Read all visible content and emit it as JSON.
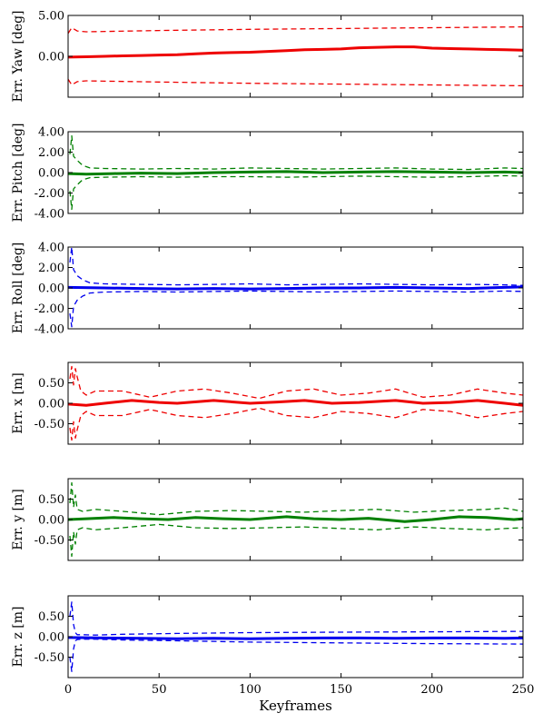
{
  "chart_data": [
    {
      "type": "line",
      "ylabel": "Err. Yaw [deg]",
      "color": "#ee0000",
      "xlim": [
        0,
        250
      ],
      "ylim": [
        -5,
        5
      ],
      "yticks": [
        5,
        0,
        -5
      ],
      "ytick_labels": [
        "5.00",
        "0.00",
        ""
      ],
      "series": [
        {
          "role": "mean",
          "x": [
            0,
            10,
            20,
            30,
            40,
            50,
            60,
            70,
            80,
            90,
            100,
            110,
            120,
            130,
            140,
            150,
            160,
            170,
            180,
            190,
            200,
            210,
            220,
            230,
            240,
            250
          ],
          "values": [
            -0.1,
            -0.05,
            0.0,
            0.05,
            0.1,
            0.15,
            0.2,
            0.3,
            0.4,
            0.45,
            0.5,
            0.6,
            0.7,
            0.8,
            0.85,
            0.9,
            1.05,
            1.1,
            1.15,
            1.15,
            1.0,
            0.95,
            0.9,
            0.85,
            0.8,
            0.75
          ]
        },
        {
          "role": "upper",
          "x": [
            0,
            2,
            5,
            10,
            50,
            100,
            150,
            200,
            250
          ],
          "values": [
            2.8,
            3.5,
            3.1,
            3.0,
            3.15,
            3.3,
            3.4,
            3.5,
            3.6
          ]
        },
        {
          "role": "lower",
          "x": [
            0,
            2,
            5,
            10,
            50,
            100,
            150,
            200,
            250
          ],
          "values": [
            -2.8,
            -3.5,
            -3.1,
            -3.0,
            -3.15,
            -3.3,
            -3.4,
            -3.5,
            -3.6
          ]
        }
      ]
    },
    {
      "type": "line",
      "ylabel": "Err. Pitch [deg]",
      "color": "#008000",
      "xlim": [
        0,
        250
      ],
      "ylim": [
        -4,
        4
      ],
      "yticks": [
        4,
        2,
        0,
        -2,
        -4
      ],
      "ytick_labels": [
        "4.00",
        "2.00",
        "0.00",
        "-2.00",
        "-4.00"
      ],
      "series": [
        {
          "role": "mean",
          "x": [
            0,
            10,
            25,
            40,
            60,
            80,
            100,
            120,
            140,
            160,
            180,
            200,
            220,
            240,
            250
          ],
          "values": [
            -0.1,
            -0.15,
            -0.1,
            -0.05,
            -0.1,
            0.0,
            0.05,
            0.1,
            0.0,
            0.05,
            0.1,
            0.05,
            0.0,
            0.05,
            0.0
          ]
        },
        {
          "role": "upper",
          "x": [
            1,
            2,
            3,
            5,
            8,
            12,
            20,
            40,
            60,
            80,
            100,
            120,
            140,
            160,
            180,
            200,
            220,
            240,
            250
          ],
          "values": [
            1.8,
            3.6,
            1.6,
            1.2,
            0.7,
            0.45,
            0.4,
            0.35,
            0.4,
            0.35,
            0.45,
            0.4,
            0.35,
            0.4,
            0.45,
            0.35,
            0.3,
            0.45,
            0.4
          ]
        },
        {
          "role": "lower",
          "x": [
            1,
            2,
            3,
            5,
            8,
            12,
            20,
            40,
            60,
            80,
            100,
            120,
            140,
            160,
            180,
            200,
            220,
            240,
            250
          ],
          "values": [
            -1.8,
            -3.6,
            -1.6,
            -1.2,
            -0.7,
            -0.5,
            -0.45,
            -0.4,
            -0.45,
            -0.4,
            -0.4,
            -0.45,
            -0.4,
            -0.35,
            -0.4,
            -0.45,
            -0.4,
            -0.3,
            -0.35
          ]
        }
      ]
    },
    {
      "type": "line",
      "ylabel": "Err. Roll [deg]",
      "color": "#0000ee",
      "xlim": [
        0,
        250
      ],
      "ylim": [
        -4,
        4
      ],
      "yticks": [
        4,
        2,
        0,
        -2,
        -4
      ],
      "ytick_labels": [
        "4.00",
        "2.00",
        "0.00",
        "-2.00",
        "-4.00"
      ],
      "series": [
        {
          "role": "mean",
          "x": [
            0,
            20,
            40,
            60,
            80,
            100,
            120,
            140,
            160,
            180,
            200,
            220,
            240,
            250
          ],
          "values": [
            0.05,
            0.0,
            -0.05,
            -0.1,
            -0.05,
            -0.1,
            -0.05,
            0.0,
            0.0,
            0.05,
            0.0,
            -0.05,
            0.05,
            0.1
          ]
        },
        {
          "role": "upper",
          "x": [
            1,
            2,
            3,
            5,
            8,
            12,
            20,
            40,
            60,
            80,
            100,
            120,
            140,
            160,
            180,
            200,
            220,
            240,
            250
          ],
          "values": [
            2.5,
            4.0,
            1.8,
            1.2,
            0.8,
            0.5,
            0.4,
            0.35,
            0.3,
            0.35,
            0.4,
            0.3,
            0.35,
            0.4,
            0.35,
            0.3,
            0.35,
            0.3,
            0.25
          ]
        },
        {
          "role": "lower",
          "x": [
            1,
            2,
            3,
            5,
            8,
            12,
            20,
            40,
            60,
            80,
            100,
            120,
            140,
            160,
            180,
            200,
            220,
            240,
            250
          ],
          "values": [
            -2.5,
            -3.8,
            -1.8,
            -1.2,
            -0.8,
            -0.5,
            -0.4,
            -0.35,
            -0.4,
            -0.35,
            -0.3,
            -0.35,
            -0.4,
            -0.35,
            -0.3,
            -0.35,
            -0.4,
            -0.3,
            -0.35
          ]
        }
      ]
    },
    {
      "type": "line",
      "ylabel": "Err. x [m]",
      "color": "#ee0000",
      "xlim": [
        0,
        250
      ],
      "ylim": [
        -1,
        1
      ],
      "yticks": [
        0.5,
        0,
        -0.5
      ],
      "ytick_labels": [
        "0.50",
        "0.00",
        "-0.50"
      ],
      "series": [
        {
          "role": "mean",
          "x": [
            0,
            10,
            20,
            35,
            50,
            60,
            80,
            100,
            115,
            130,
            145,
            160,
            180,
            195,
            210,
            225,
            240,
            250
          ],
          "values": [
            -0.02,
            -0.05,
            0.0,
            0.07,
            0.02,
            0.0,
            0.07,
            0.0,
            0.03,
            0.07,
            0.0,
            0.02,
            0.07,
            0.0,
            0.02,
            0.07,
            0.0,
            -0.05
          ]
        },
        {
          "role": "upper",
          "x": [
            1,
            2,
            3,
            4,
            5,
            7,
            10,
            15,
            30,
            45,
            60,
            75,
            90,
            105,
            120,
            135,
            150,
            165,
            180,
            195,
            210,
            225,
            240,
            250
          ],
          "values": [
            0.6,
            0.9,
            0.45,
            0.85,
            0.65,
            0.3,
            0.2,
            0.3,
            0.3,
            0.15,
            0.3,
            0.35,
            0.25,
            0.12,
            0.3,
            0.35,
            0.2,
            0.25,
            0.35,
            0.15,
            0.2,
            0.35,
            0.25,
            0.2
          ]
        },
        {
          "role": "lower",
          "x": [
            1,
            2,
            3,
            4,
            5,
            7,
            10,
            15,
            30,
            45,
            60,
            75,
            90,
            105,
            120,
            135,
            150,
            165,
            180,
            195,
            210,
            225,
            240,
            250
          ],
          "values": [
            -0.6,
            -0.9,
            -0.45,
            -0.85,
            -0.65,
            -0.3,
            -0.2,
            -0.3,
            -0.3,
            -0.15,
            -0.3,
            -0.35,
            -0.25,
            -0.12,
            -0.3,
            -0.35,
            -0.2,
            -0.25,
            -0.35,
            -0.15,
            -0.2,
            -0.35,
            -0.25,
            -0.2
          ]
        }
      ]
    },
    {
      "type": "line",
      "ylabel": "Err. y [m]",
      "color": "#008000",
      "xlim": [
        0,
        250
      ],
      "ylim": [
        -1,
        1
      ],
      "yticks": [
        0.5,
        0,
        -0.5
      ],
      "ytick_labels": [
        "0.50",
        "0.00",
        "-0.50"
      ],
      "series": [
        {
          "role": "mean",
          "x": [
            0,
            10,
            25,
            40,
            55,
            70,
            85,
            100,
            120,
            135,
            150,
            165,
            185,
            200,
            215,
            230,
            245,
            250
          ],
          "values": [
            0.0,
            0.02,
            0.05,
            0.02,
            0.0,
            0.05,
            0.02,
            0.0,
            0.07,
            0.02,
            0.0,
            0.03,
            -0.05,
            0.0,
            0.07,
            0.05,
            0.0,
            0.02
          ]
        },
        {
          "role": "upper",
          "x": [
            1,
            2,
            3,
            4,
            5,
            8,
            15,
            30,
            50,
            70,
            90,
            110,
            130,
            150,
            170,
            190,
            210,
            230,
            240,
            250
          ],
          "values": [
            0.4,
            0.9,
            0.3,
            0.6,
            0.25,
            0.2,
            0.25,
            0.2,
            0.12,
            0.2,
            0.22,
            0.2,
            0.18,
            0.22,
            0.25,
            0.18,
            0.22,
            0.25,
            0.28,
            0.2
          ]
        },
        {
          "role": "lower",
          "x": [
            1,
            2,
            3,
            4,
            5,
            8,
            15,
            30,
            50,
            70,
            90,
            110,
            130,
            150,
            170,
            190,
            210,
            230,
            240,
            250
          ],
          "values": [
            -0.4,
            -0.9,
            -0.3,
            -0.6,
            -0.25,
            -0.2,
            -0.25,
            -0.2,
            -0.12,
            -0.2,
            -0.22,
            -0.2,
            -0.18,
            -0.22,
            -0.25,
            -0.18,
            -0.22,
            -0.25,
            -0.22,
            -0.2
          ]
        }
      ]
    },
    {
      "type": "line",
      "ylabel": "Err. z [m]",
      "color": "#0000ee",
      "xlim": [
        0,
        250
      ],
      "ylim": [
        -1,
        1
      ],
      "yticks": [
        0.5,
        0,
        -0.5
      ],
      "ytick_labels": [
        "0.50",
        "0.00",
        "-0.50"
      ],
      "series": [
        {
          "role": "mean",
          "x": [
            0,
            20,
            40,
            60,
            80,
            100,
            120,
            140,
            160,
            180,
            200,
            220,
            240,
            250
          ],
          "values": [
            -0.02,
            -0.03,
            -0.04,
            -0.05,
            -0.04,
            -0.05,
            -0.04,
            -0.03,
            -0.03,
            -0.04,
            -0.03,
            -0.03,
            -0.04,
            -0.03
          ]
        },
        {
          "role": "upper",
          "x": [
            1,
            2,
            3,
            4,
            5,
            8,
            15,
            30,
            60,
            100,
            150,
            200,
            250
          ],
          "values": [
            0.5,
            0.85,
            0.3,
            0.1,
            0.05,
            0.05,
            0.04,
            0.06,
            0.08,
            0.1,
            0.11,
            0.12,
            0.13
          ]
        },
        {
          "role": "lower",
          "x": [
            1,
            2,
            3,
            4,
            5,
            8,
            15,
            30,
            60,
            100,
            150,
            200,
            250
          ],
          "values": [
            -0.5,
            -0.85,
            -0.3,
            -0.1,
            -0.07,
            -0.06,
            -0.06,
            -0.08,
            -0.1,
            -0.13,
            -0.15,
            -0.17,
            -0.18
          ]
        }
      ]
    }
  ],
  "xaxis": {
    "label": "Keyframes",
    "ticks": [
      0,
      50,
      100,
      150,
      200,
      250
    ],
    "tick_labels": [
      "0",
      "50",
      "100",
      "150",
      "200",
      "250"
    ]
  }
}
